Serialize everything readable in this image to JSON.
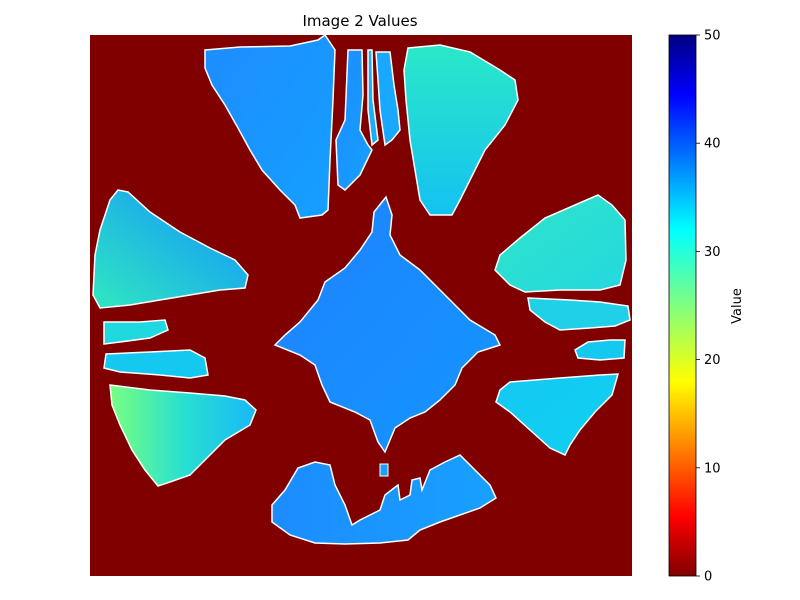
{
  "chart_data": {
    "type": "heatmap",
    "title": "Image 2 Values",
    "colormap": "jet",
    "background_value": 0,
    "colorbar": {
      "label": "Value",
      "range": [
        0,
        50
      ],
      "ticks": [
        "0",
        "10",
        "20",
        "30",
        "40",
        "50"
      ]
    },
    "regions": [
      {
        "name": "center diamond",
        "value_low": 37,
        "value_high": 40
      },
      {
        "name": "top-left wedge",
        "value_low": 35,
        "value_high": 38
      },
      {
        "name": "top thin strips",
        "value_low": 33,
        "value_high": 36
      },
      {
        "name": "top-right wedge",
        "value_low": 30,
        "value_high": 34
      },
      {
        "name": "left triangle",
        "value_low": 31,
        "value_high": 37
      },
      {
        "name": "left bar upper",
        "value_low": 32,
        "value_high": 34
      },
      {
        "name": "left bar lower",
        "value_low": 33,
        "value_high": 35
      },
      {
        "name": "bottom-left wedge",
        "value_low": 24,
        "value_high": 34
      },
      {
        "name": "right wedge upper",
        "value_low": 31,
        "value_high": 33
      },
      {
        "name": "right strip",
        "value_low": 32,
        "value_high": 34
      },
      {
        "name": "right small patch",
        "value_low": 33,
        "value_high": 34
      },
      {
        "name": "bottom-right wedge",
        "value_low": 33,
        "value_high": 35
      },
      {
        "name": "bottom wedge",
        "value_low": 36,
        "value_high": 39
      }
    ]
  }
}
